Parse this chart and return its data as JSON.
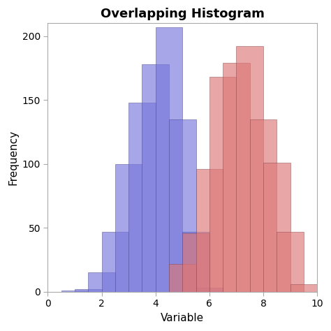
{
  "title": "Overlapping Histogram",
  "xlabel": "Variable",
  "ylabel": "Frequency",
  "xlim": [
    0,
    10
  ],
  "ylim": [
    0,
    210
  ],
  "xticks": [
    0,
    2,
    4,
    6,
    8,
    10
  ],
  "yticks": [
    0,
    50,
    100,
    150,
    200
  ],
  "blue_color": "#7777DD",
  "red_color": "#DD7777",
  "blue_edge": "#444488",
  "red_edge": "#884444",
  "bin_width": 1.0,
  "blue_bins": [
    0.5,
    1.0,
    1.5,
    2.0,
    2.5,
    3.0,
    3.5,
    4.0,
    4.5,
    5.0,
    5.5
  ],
  "blue_heights": [
    1,
    2,
    15,
    47,
    100,
    148,
    178,
    207,
    135,
    47,
    3
  ],
  "red_bins": [
    4.5,
    5.0,
    5.5,
    6.0,
    6.5,
    7.0,
    7.5,
    8.0,
    8.5,
    9.0
  ],
  "red_heights": [
    22,
    46,
    96,
    168,
    179,
    192,
    135,
    101,
    47,
    6
  ],
  "alpha": 0.65,
  "title_fontsize": 13,
  "label_fontsize": 11,
  "tick_fontsize": 10,
  "background_color": "#FFFFFF",
  "spine_color": "#AAAAAA"
}
